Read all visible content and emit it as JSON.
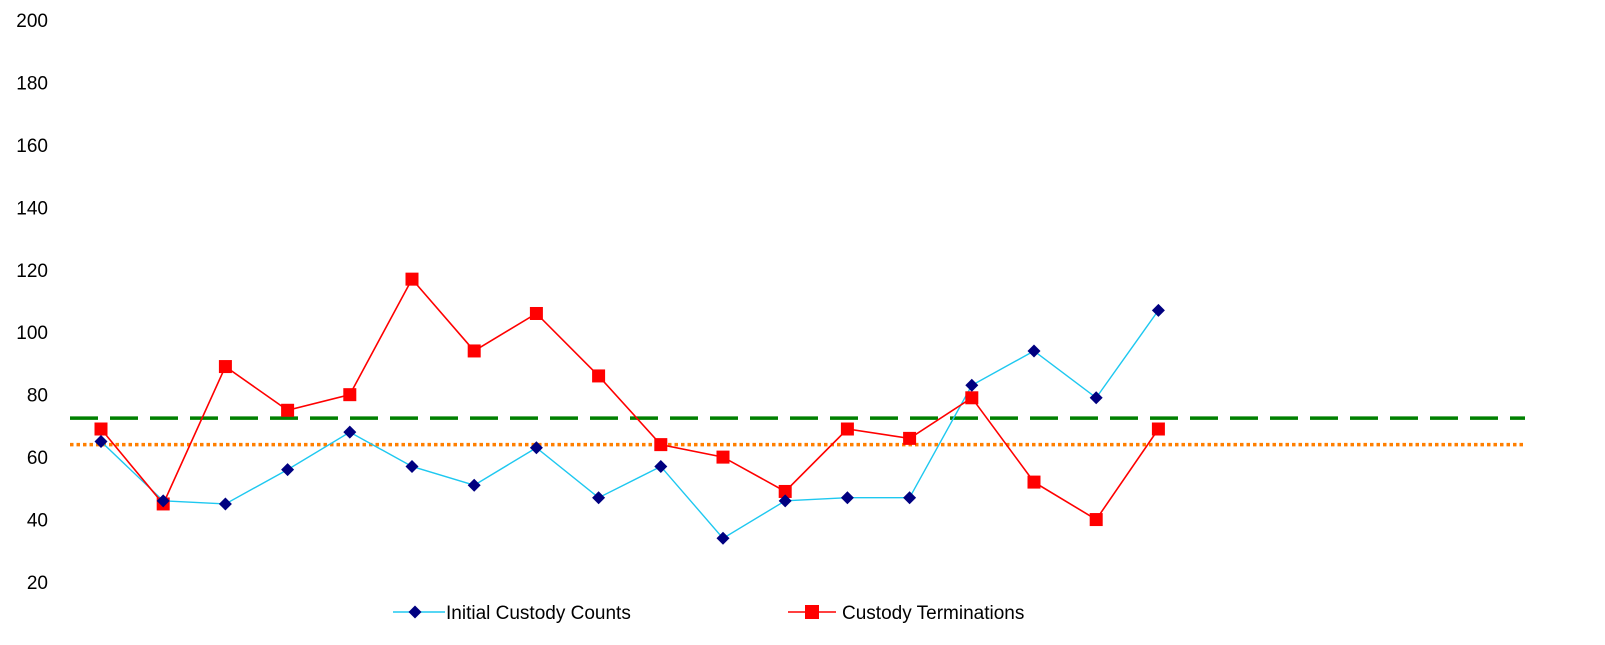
{
  "chart_data": {
    "type": "line",
    "title": "",
    "xlabel": "",
    "ylabel": "",
    "ylim": [
      20,
      200
    ],
    "yticks": [
      20,
      40,
      60,
      80,
      100,
      120,
      140,
      160,
      180,
      200
    ],
    "grid": false,
    "legend_position": "bottom",
    "x": [
      1,
      2,
      3,
      4,
      5,
      6,
      7,
      8,
      9,
      10,
      11,
      12,
      13,
      14,
      15,
      16,
      17,
      18,
      19,
      20,
      21,
      22,
      23
    ],
    "series": [
      {
        "name": "Initial Custody Counts",
        "color": "#1EC8F0",
        "marker": "diamond",
        "marker_color": "#000080",
        "values": [
          65,
          46,
          45,
          56,
          68,
          57,
          51,
          63,
          47,
          57,
          34,
          46,
          47,
          47,
          83,
          94,
          79,
          107,
          null,
          null,
          null,
          null,
          null
        ]
      },
      {
        "name": "Custody Terminations",
        "color": "#FF0000",
        "marker": "square",
        "marker_color": "#FF0000",
        "values": [
          69,
          45,
          89,
          75,
          80,
          117,
          94,
          106,
          86,
          64,
          60,
          49,
          69,
          66,
          79,
          52,
          40,
          69,
          null,
          null,
          null,
          null,
          null
        ]
      }
    ],
    "reference_lines": [
      {
        "value": 72.5,
        "color": "#008000",
        "style": "dashed"
      },
      {
        "value": 64,
        "color": "#FF7F00",
        "style": "dotted"
      }
    ]
  }
}
